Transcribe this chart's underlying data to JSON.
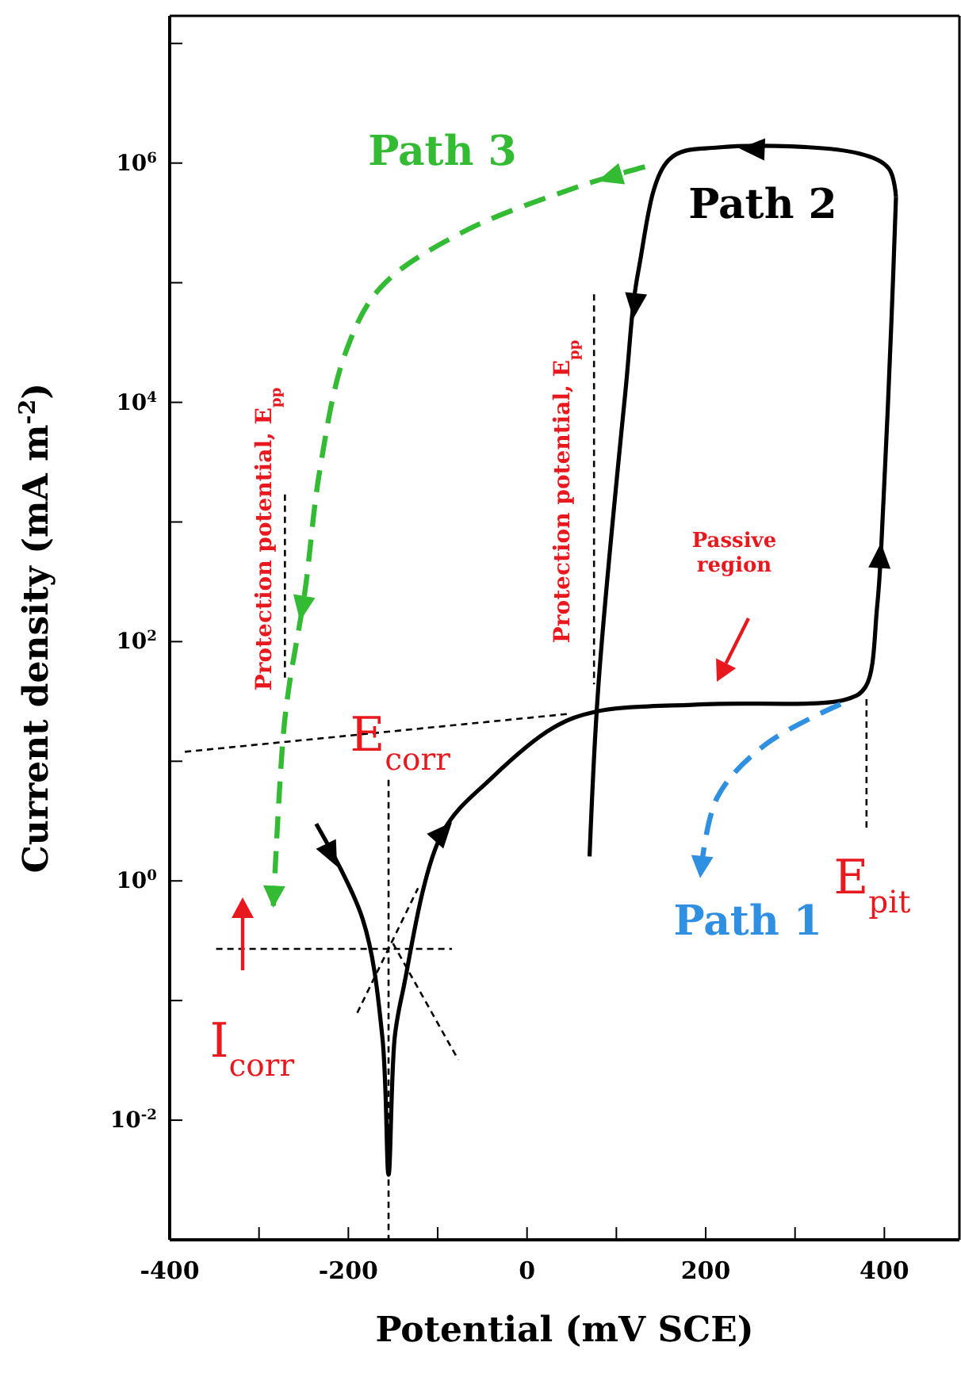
{
  "chart_data": {
    "type": "line",
    "log": "y",
    "xlabel": "Potential (mV SCE)",
    "ylabel": "Current density (mA m$^{-2}$)",
    "xlim": [
      -400,
      484
    ],
    "ylim": [
      0.001,
      17000000
    ],
    "xticks": [
      -400,
      {
        "value": -300,
        "label": null
      },
      -200,
      {
        "value": -100,
        "label": null
      },
      0,
      {
        "value": 100,
        "label": null
      },
      200,
      {
        "value": 300,
        "label": null
      },
      400
    ],
    "yticks": [
      {
        "value": 0.01,
        "label": "10$^{-2}$"
      },
      {
        "value": 0.1,
        "label": null
      },
      {
        "value": 1,
        "label": "10$^{0}$"
      },
      {
        "value": 10,
        "label": null
      },
      {
        "value": 100,
        "label": "10$^{2}$"
      },
      {
        "value": 1000,
        "label": null
      },
      {
        "value": 10000,
        "label": "10$^{4}$"
      },
      {
        "value": 100000,
        "label": null
      },
      {
        "value": 1000000,
        "label": "10$^{6}$"
      },
      {
        "value": 10000000,
        "label": null
      }
    ],
    "grid": false,
    "series": [
      {
        "color": "#000000",
        "line_style": "solid",
        "x": [
          -236,
          -184,
          -162,
          -155,
          -148,
          -139,
          -95,
          -40,
          29,
          77,
          200,
          358,
          379,
          392,
          399,
          408,
          413
        ],
        "values": [
          3,
          0.48,
          0.05,
          0.0035,
          0.05,
          0.12,
          2.5,
          7.2,
          19,
          26,
          30,
          33,
          42,
          200,
          1500,
          50000,
          520000
        ]
      },
      {
        "color": "#000000",
        "line_style": "solid",
        "x": [
          413,
          405,
          372,
          214,
          159,
          125,
          110,
          80,
          70
        ],
        "values": [
          520000,
          900000,
          1200000,
          1350000,
          1070000,
          130000,
          12000,
          44,
          1.6
        ]
      },
      {
        "color": "#33bb33",
        "line_style": "dashed",
        "x": [
          132,
          56,
          -74,
          -164,
          -204,
          -232,
          -249,
          -266,
          -273,
          -284
        ],
        "values": [
          930000,
          630000,
          260000,
          91000,
          25000,
          2700,
          250,
          44,
          16,
          0.62
        ]
      },
      {
        "color": "#2f8fe0",
        "line_style": "dashed",
        "x": [
          351,
          268,
          213,
          194
        ],
        "values": [
          30,
          14,
          5,
          1.1
        ]
      },
      {
        "color": "#000000",
        "line_style": "dotted",
        "x": [
          -383,
          49
        ],
        "values": [
          12,
          25
        ]
      },
      {
        "color": "#000000",
        "line_style": "dotted",
        "x": [
          -155,
          -155
        ],
        "values": [
          7,
          0.001
        ]
      },
      {
        "color": "#000000",
        "line_style": "dotted",
        "x": [
          -348,
          -84
        ],
        "values": [
          0.27,
          0.27
        ]
      },
      {
        "color": "#000000",
        "line_style": "dotted",
        "x": [
          -190,
          -122
        ],
        "values": [
          0.079,
          0.87
        ]
      },
      {
        "color": "#000000",
        "line_style": "dotted",
        "x": [
          -150,
          -77
        ],
        "values": [
          0.3,
          0.032
        ]
      },
      {
        "color": "#000000",
        "line_style": "dotted",
        "x": [
          380,
          380
        ],
        "values": [
          33,
          2.6
        ]
      },
      {
        "color": "#000000",
        "line_style": "dotted",
        "x": [
          75,
          75
        ],
        "values": [
          80000,
          44
        ]
      },
      {
        "color": "#000000",
        "line_style": "dotted",
        "x": [
          -271,
          -271
        ],
        "values": [
          1700,
          50
        ]
      }
    ],
    "annotations": [
      "Passive region",
      {
        "text": "E$_{corr}$",
        "x": -142,
        "y": 17
      },
      "E$_{pit}$",
      "I$_{corr}$",
      "Protection potential, E$_{pp}$",
      "Protection potential, E$_{pp}$",
      "Path 3",
      {
        "text": "Path 2",
        "x": 413,
        "y": 520000
      },
      {
        "text": "Path 1",
        "x": 194,
        "y": 1.1
      }
    ]
  }
}
